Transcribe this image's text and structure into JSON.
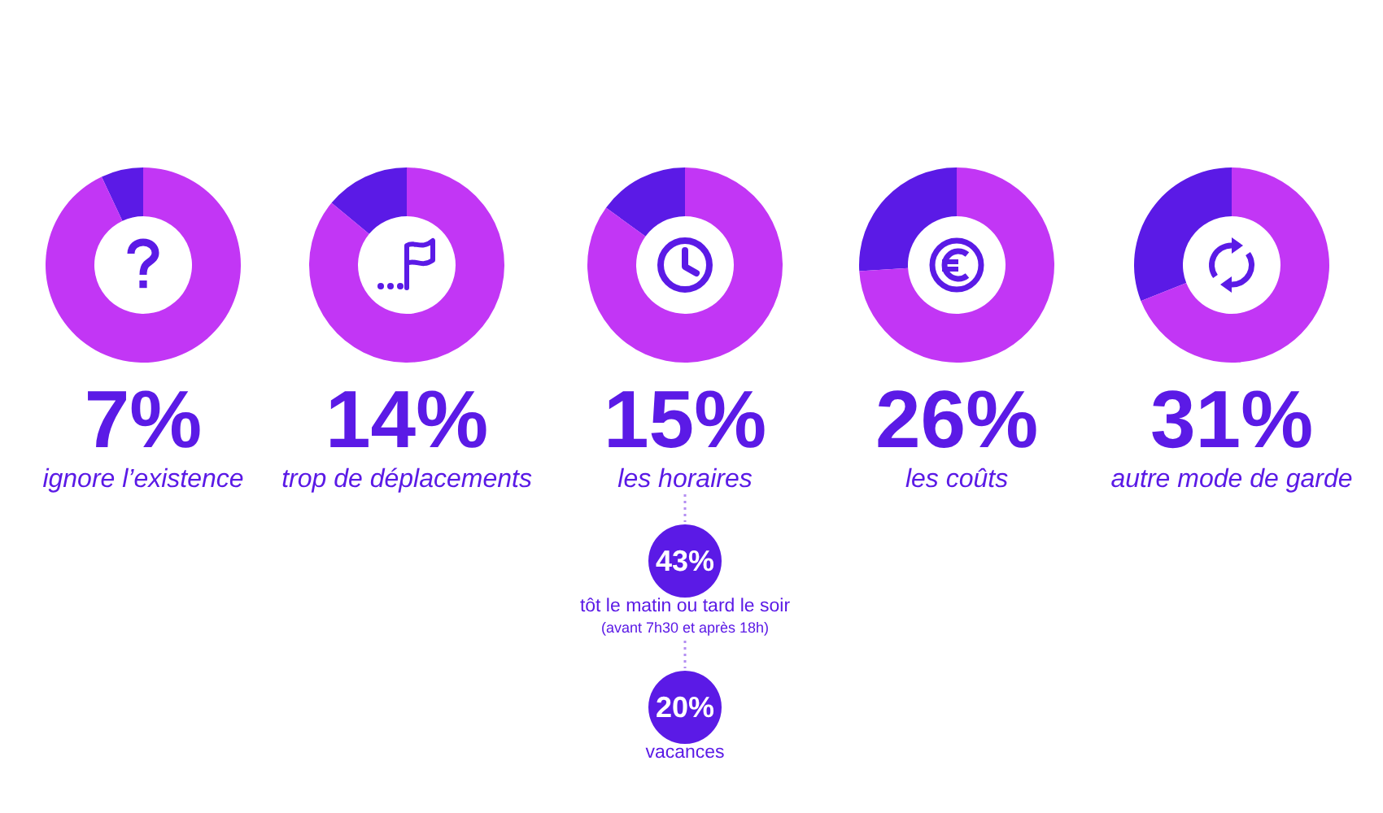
{
  "chart_data": [
    {
      "type": "donut",
      "title": "7%",
      "subtitle": "ignore l’existence",
      "categories": [
        null,
        null
      ],
      "values": [
        7,
        93
      ],
      "colors": [
        "#5b1ae6",
        "#c236f5"
      ]
    },
    {
      "type": "donut",
      "title": "14%",
      "subtitle": "trop de déplacements",
      "categories": [
        null,
        null
      ],
      "values": [
        14,
        86
      ],
      "colors": [
        "#5b1ae6",
        "#c236f5"
      ]
    },
    {
      "type": "donut",
      "title": "15%",
      "subtitle": "les horaires",
      "categories": [
        null,
        null
      ],
      "values": [
        15,
        85
      ],
      "colors": [
        "#5b1ae6",
        "#c236f5"
      ]
    },
    {
      "type": "donut",
      "title": "26%",
      "subtitle": "les coûts",
      "categories": [
        null,
        null
      ],
      "values": [
        26,
        74
      ],
      "colors": [
        "#5b1ae6",
        "#c236f5"
      ]
    },
    {
      "type": "donut",
      "title": "31%",
      "subtitle": "autre mode de garde",
      "categories": [
        null,
        null
      ],
      "values": [
        31,
        69
      ],
      "colors": [
        "#5b1ae6",
        "#c236f5"
      ]
    },
    {
      "type": "other",
      "categories": [
        "tôt le matin ou tard le soir",
        "vacances"
      ],
      "values": [
        43,
        20
      ],
      "value_labels": [
        "43%",
        "20%"
      ],
      "annotations": [
        "(avant 7h30 et après 18h)"
      ],
      "color": "#5b1ae6"
    }
  ]
}
